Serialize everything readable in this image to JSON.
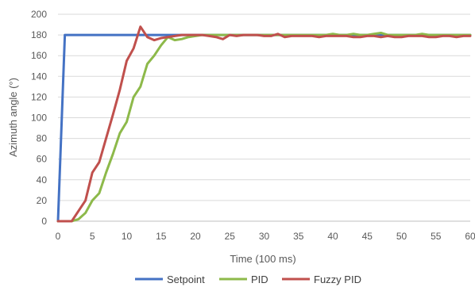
{
  "chart_data": {
    "type": "line",
    "title": "",
    "xlabel": "Time (100 ms)",
    "ylabel": "Azimuth angle (°)",
    "xlim": [
      0,
      60
    ],
    "ylim": [
      0,
      200
    ],
    "x_ticks": [
      0,
      5,
      10,
      15,
      20,
      25,
      30,
      35,
      40,
      45,
      50,
      55,
      60
    ],
    "y_ticks": [
      0,
      20,
      40,
      60,
      80,
      100,
      120,
      140,
      160,
      180,
      200
    ],
    "grid": "horizontal",
    "legend": "bottom",
    "series": [
      {
        "name": "Setpoint",
        "color": "#4472C4",
        "points": [
          [
            0,
            0
          ],
          [
            1,
            180
          ],
          [
            60,
            180
          ]
        ]
      },
      {
        "name": "PID",
        "color": "#8DB94A",
        "points": [
          [
            0,
            0
          ],
          [
            1,
            0
          ],
          [
            2,
            0
          ],
          [
            3,
            2
          ],
          [
            4,
            8
          ],
          [
            5,
            20
          ],
          [
            6,
            27
          ],
          [
            7,
            47
          ],
          [
            8,
            65
          ],
          [
            9,
            85
          ],
          [
            10,
            96
          ],
          [
            11,
            120
          ],
          [
            12,
            130
          ],
          [
            13,
            152
          ],
          [
            14,
            160
          ],
          [
            15,
            170
          ],
          [
            16,
            178
          ],
          [
            17,
            175
          ],
          [
            18,
            176
          ],
          [
            19,
            178
          ],
          [
            20,
            179
          ],
          [
            21,
            180
          ],
          [
            22,
            180
          ],
          [
            23,
            180
          ],
          [
            24,
            180
          ],
          [
            25,
            180
          ],
          [
            26,
            180
          ],
          [
            27,
            180
          ],
          [
            28,
            180
          ],
          [
            29,
            180
          ],
          [
            30,
            180
          ],
          [
            31,
            180
          ],
          [
            32,
            180
          ],
          [
            33,
            180
          ],
          [
            34,
            180
          ],
          [
            35,
            180
          ],
          [
            36,
            180
          ],
          [
            37,
            180
          ],
          [
            38,
            180
          ],
          [
            39,
            180
          ],
          [
            40,
            181
          ],
          [
            41,
            180
          ],
          [
            42,
            180
          ],
          [
            43,
            181
          ],
          [
            44,
            180
          ],
          [
            45,
            180
          ],
          [
            46,
            181
          ],
          [
            47,
            182
          ],
          [
            48,
            180
          ],
          [
            49,
            180
          ],
          [
            50,
            180
          ],
          [
            51,
            180
          ],
          [
            52,
            180
          ],
          [
            53,
            181
          ],
          [
            54,
            180
          ],
          [
            55,
            180
          ],
          [
            56,
            180
          ],
          [
            57,
            180
          ],
          [
            58,
            180
          ],
          [
            59,
            180
          ],
          [
            60,
            180
          ]
        ]
      },
      {
        "name": "Fuzzy PID",
        "color": "#C0504D",
        "points": [
          [
            0,
            0
          ],
          [
            1,
            0
          ],
          [
            2,
            0
          ],
          [
            3,
            10
          ],
          [
            4,
            20
          ],
          [
            5,
            47
          ],
          [
            6,
            57
          ],
          [
            7,
            80
          ],
          [
            8,
            103
          ],
          [
            9,
            127
          ],
          [
            10,
            155
          ],
          [
            11,
            167
          ],
          [
            12,
            188
          ],
          [
            13,
            178
          ],
          [
            14,
            175
          ],
          [
            15,
            177
          ],
          [
            16,
            178
          ],
          [
            17,
            179
          ],
          [
            18,
            180
          ],
          [
            19,
            180
          ],
          [
            20,
            180
          ],
          [
            21,
            180
          ],
          [
            22,
            179
          ],
          [
            23,
            178
          ],
          [
            24,
            176
          ],
          [
            25,
            180
          ],
          [
            26,
            179
          ],
          [
            27,
            180
          ],
          [
            28,
            180
          ],
          [
            29,
            180
          ],
          [
            30,
            179
          ],
          [
            31,
            179
          ],
          [
            32,
            181
          ],
          [
            33,
            178
          ],
          [
            34,
            179
          ],
          [
            35,
            179
          ],
          [
            36,
            179
          ],
          [
            37,
            179
          ],
          [
            38,
            178
          ],
          [
            39,
            179
          ],
          [
            40,
            179
          ],
          [
            41,
            179
          ],
          [
            42,
            179
          ],
          [
            43,
            178
          ],
          [
            44,
            178
          ],
          [
            45,
            179
          ],
          [
            46,
            179
          ],
          [
            47,
            178
          ],
          [
            48,
            179
          ],
          [
            49,
            178
          ],
          [
            50,
            178
          ],
          [
            51,
            179
          ],
          [
            52,
            179
          ],
          [
            53,
            179
          ],
          [
            54,
            178
          ],
          [
            55,
            178
          ],
          [
            56,
            179
          ],
          [
            57,
            179
          ],
          [
            58,
            178
          ],
          [
            59,
            179
          ],
          [
            60,
            179
          ]
        ]
      }
    ]
  }
}
